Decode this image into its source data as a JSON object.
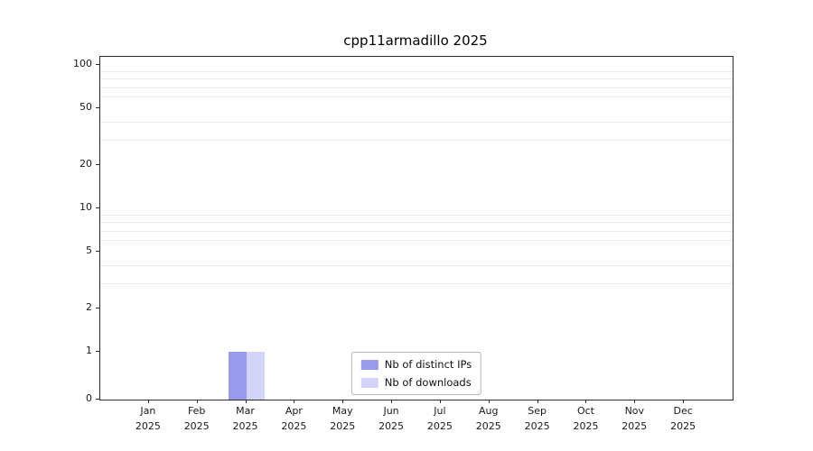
{
  "title": "cpp11armadillo 2025",
  "chart_data": {
    "type": "bar",
    "title": "cpp11armadillo 2025",
    "categories": [
      "Jan",
      "Feb",
      "Mar",
      "Apr",
      "May",
      "Jun",
      "Jul",
      "Aug",
      "Sep",
      "Oct",
      "Nov",
      "Dec"
    ],
    "year_label": "2025",
    "series": [
      {
        "name": "Nb of distinct IPs",
        "color": "#9999ee",
        "values": [
          0,
          0,
          1,
          0,
          0,
          0,
          0,
          0,
          0,
          0,
          0,
          0
        ]
      },
      {
        "name": "Nb of downloads",
        "color": "#d4d4f8",
        "values": [
          0,
          0,
          1,
          0,
          0,
          0,
          0,
          0,
          0,
          0,
          0,
          0
        ]
      }
    ],
    "yticks": [
      0,
      1,
      2,
      5,
      10,
      20,
      50,
      100
    ],
    "minor_gridlines": [
      3,
      4,
      6,
      7,
      8,
      9,
      30,
      40,
      60,
      70,
      80,
      90
    ],
    "scale": "symlog",
    "ylim": [
      0,
      115
    ],
    "xlabel": "",
    "ylabel": "",
    "grid": "minor-horizontal",
    "legend_position": "lower center"
  }
}
